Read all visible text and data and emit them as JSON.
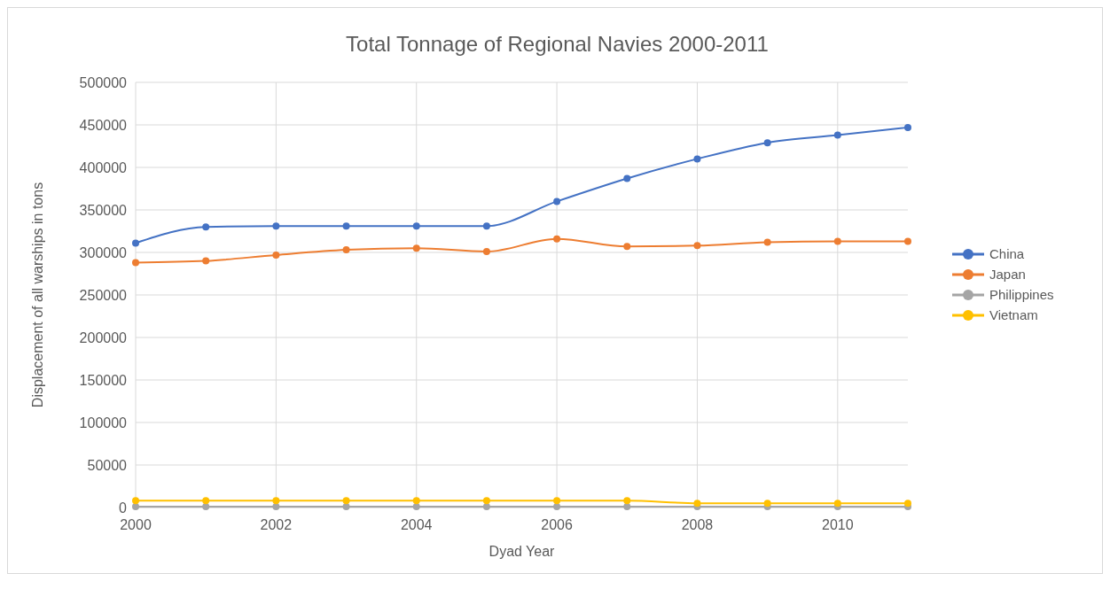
{
  "chart_data": {
    "type": "line",
    "title": "Total Tonnage of Regional Navies 2000-2011",
    "xlabel": "Dyad Year",
    "ylabel": "Displacement of all warships in tons",
    "x": [
      2000,
      2001,
      2002,
      2003,
      2004,
      2005,
      2006,
      2007,
      2008,
      2009,
      2010,
      2011
    ],
    "xlim": [
      2000,
      2011
    ],
    "xticks": [
      2000,
      2002,
      2004,
      2006,
      2008,
      2010
    ],
    "ylim": [
      0,
      500000
    ],
    "yticks": [
      0,
      50000,
      100000,
      150000,
      200000,
      250000,
      300000,
      350000,
      400000,
      450000,
      500000
    ],
    "grid": true,
    "legend": "right",
    "marker": "circle",
    "line_style": "solid",
    "series": [
      {
        "name": "China",
        "color": "#4472c4",
        "values": [
          311000,
          330000,
          331000,
          331000,
          331000,
          331000,
          360000,
          387000,
          410000,
          429000,
          438000,
          447000
        ]
      },
      {
        "name": "Japan",
        "color": "#ed7d31",
        "values": [
          288000,
          290000,
          297000,
          303000,
          305000,
          301000,
          316000,
          307000,
          308000,
          312000,
          313000,
          313000
        ]
      },
      {
        "name": "Philippines",
        "color": "#a5a5a5",
        "values": [
          1000,
          1000,
          1000,
          1000,
          1000,
          1000,
          1000,
          1000,
          1000,
          1000,
          1000,
          1000
        ]
      },
      {
        "name": "Vietnam",
        "color": "#ffc000",
        "values": [
          8000,
          8000,
          8000,
          8000,
          8000,
          8000,
          8000,
          8000,
          5000,
          5000,
          5000,
          5000
        ]
      }
    ]
  }
}
